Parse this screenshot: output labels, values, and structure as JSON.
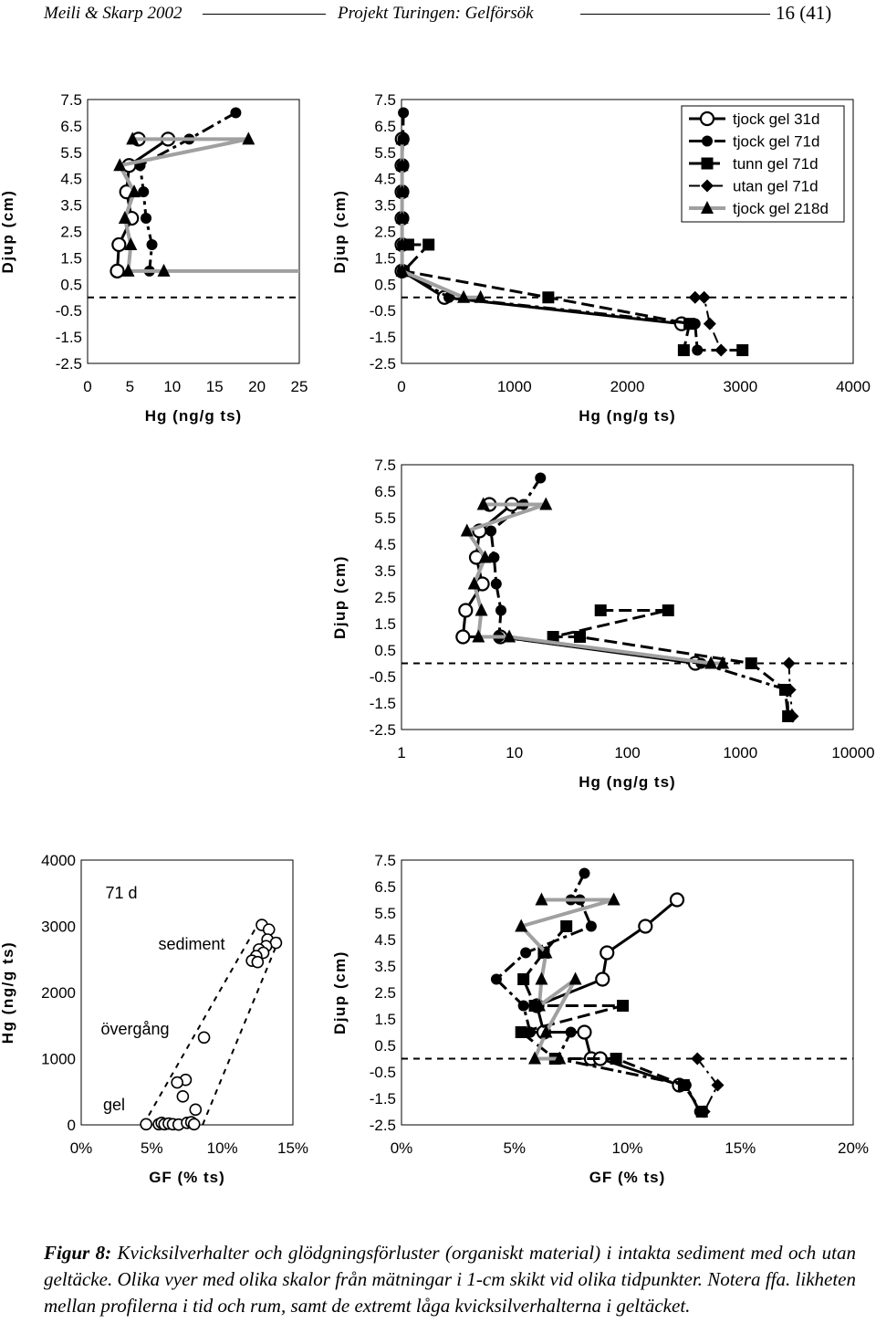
{
  "header": {
    "left": "Meili & Skarp 2002",
    "center": "Projekt Turingen: Gelförsök",
    "page": "16 (41)"
  },
  "legend": [
    "tjock gel 31d",
    "tjock gel 71d",
    "tunn gel 71d",
    "utan gel 71d",
    "tjock gel 218d"
  ],
  "caption": {
    "label": "Figur 8:",
    "text": "Kvicksilverhalter och glödgningsförluster (organiskt material) i intakta sediment med och utan geltäcke. Olika vyer med olika skalor från mätningar i 1-cm skikt vid olika tidpunkter. Notera ffa. likheten mellan profilerna i tid och rum, samt de extremt låga kvicksilverhalterna i geltäcket."
  },
  "chart_data": [
    {
      "id": "hg-depth-zoom",
      "type": "line",
      "xlabel": "Hg  (ng/g ts)",
      "ylabel": "Djup (cm)",
      "xlim": [
        0,
        25
      ],
      "ylim": [
        -2.5,
        7.5
      ],
      "xticks": [
        "0",
        "5",
        "10",
        "15",
        "20",
        "25"
      ],
      "yticks": [
        "7.5",
        "6.5",
        "5.5",
        "4.5",
        "3.5",
        "2.5",
        "1.5",
        "0.5",
        "-0.5",
        "-1.5",
        "-2.5"
      ],
      "series": [
        {
          "name": "tjock gel 31d",
          "points": [
            [
              6.0,
              6
            ],
            [
              9.5,
              6
            ],
            [
              4.9,
              5
            ],
            [
              4.6,
              4
            ],
            [
              5.2,
              3
            ],
            [
              3.7,
              2
            ],
            [
              3.5,
              1
            ]
          ]
        },
        {
          "name": "tjock gel 71d",
          "points": [
            [
              17.5,
              7
            ],
            [
              12,
              6
            ],
            [
              6.2,
              5
            ],
            [
              6.6,
              4
            ],
            [
              6.9,
              3
            ],
            [
              7.6,
              2
            ],
            [
              7.3,
              1
            ]
          ]
        },
        {
          "name": "tjock gel 218d",
          "points": [
            [
              5.3,
              6
            ],
            [
              19,
              6
            ],
            [
              3.8,
              5
            ],
            [
              5.5,
              4
            ],
            [
              4.4,
              3
            ],
            [
              5.1,
              2
            ],
            [
              4.8,
              1
            ],
            [
              9.0,
              1
            ],
            [
              25,
              1
            ]
          ]
        }
      ]
    },
    {
      "id": "hg-depth-linear",
      "type": "line",
      "xlabel": "Hg  (ng/g ts)",
      "ylabel": "Djup (cm)",
      "xlim": [
        0,
        4000
      ],
      "ylim": [
        -2.5,
        7.5
      ],
      "xticks": [
        "0",
        "1000",
        "2000",
        "3000",
        "4000"
      ],
      "yticks": [
        "7.5",
        "6.5",
        "5.5",
        "4.5",
        "3.5",
        "2.5",
        "1.5",
        "0.5",
        "-0.5",
        "-1.5",
        "-2.5"
      ],
      "series": [
        {
          "name": "tjock gel 31d",
          "points": [
            [
              6,
              6
            ],
            [
              4,
              5
            ],
            [
              4,
              4
            ],
            [
              4,
              3
            ],
            [
              4,
              2
            ],
            [
              4,
              1
            ],
            [
              380,
              0
            ],
            [
              2480,
              -1
            ]
          ]
        },
        {
          "name": "tjock gel 71d",
          "points": [
            [
              17,
              7
            ],
            [
              12,
              6
            ],
            [
              6,
              5
            ],
            [
              6,
              4
            ],
            [
              6,
              3
            ],
            [
              7,
              2
            ],
            [
              7,
              1
            ],
            [
              420,
              0
            ],
            [
              2600,
              -1
            ],
            [
              2620,
              -2
            ]
          ]
        },
        {
          "name": "tunn gel 71d",
          "points": [
            [
              60,
              2
            ],
            [
              240,
              2
            ],
            [
              20,
              1
            ],
            [
              1300,
              0
            ],
            [
              2550,
              -1
            ],
            [
              2500,
              -2
            ],
            [
              3020,
              -2
            ]
          ]
        },
        {
          "name": "utan gel 71d",
          "points": [
            [
              2600,
              0
            ],
            [
              2680,
              0
            ],
            [
              2730,
              -1
            ],
            [
              2830,
              -2
            ]
          ]
        },
        {
          "name": "tjock gel 218d",
          "points": [
            [
              5,
              6
            ],
            [
              5,
              5
            ],
            [
              5,
              4
            ],
            [
              5,
              3
            ],
            [
              5,
              2
            ],
            [
              5,
              1
            ],
            [
              550,
              0
            ],
            [
              700,
              0
            ]
          ]
        }
      ]
    },
    {
      "id": "hg-depth-log",
      "type": "line",
      "xlabel": "Hg  (ng/g ts)",
      "ylabel": "Djup (cm)",
      "xscale": "log",
      "xlim": [
        1,
        10000
      ],
      "ylim": [
        -2.5,
        7.5
      ],
      "xticks": [
        "1",
        "10",
        "100",
        "1000",
        "10000"
      ],
      "yticks": [
        "7.5",
        "6.5",
        "5.5",
        "4.5",
        "3.5",
        "2.5",
        "1.5",
        "0.5",
        "-0.5",
        "-1.5",
        "-2.5"
      ],
      "series": [
        {
          "name": "tjock gel 31d",
          "points": [
            [
              6,
              6
            ],
            [
              9.5,
              6
            ],
            [
              4.9,
              5
            ],
            [
              4.6,
              4
            ],
            [
              5.2,
              3
            ],
            [
              3.7,
              2
            ],
            [
              3.5,
              1
            ],
            [
              7.5,
              1
            ],
            [
              400,
              0
            ]
          ]
        },
        {
          "name": "tjock gel 71d",
          "points": [
            [
              17,
              7
            ],
            [
              12,
              6
            ],
            [
              6.2,
              5
            ],
            [
              6.6,
              4
            ],
            [
              6.9,
              3
            ],
            [
              7.6,
              2
            ],
            [
              7.3,
              1
            ],
            [
              450,
              0
            ],
            [
              2600,
              -1
            ],
            [
              2650,
              -2
            ]
          ]
        },
        {
          "name": "tunn gel 71d",
          "points": [
            [
              58,
              2
            ],
            [
              230,
              2
            ],
            [
              22,
              1
            ],
            [
              38,
              1
            ],
            [
              1250,
              0
            ],
            [
              2500,
              -1
            ],
            [
              2650,
              -2
            ]
          ]
        },
        {
          "name": "utan gel 71d",
          "points": [
            [
              2700,
              0
            ],
            [
              2750,
              -1
            ],
            [
              2900,
              -2
            ]
          ]
        },
        {
          "name": "tjock gel 218d",
          "points": [
            [
              5.3,
              6
            ],
            [
              19,
              6
            ],
            [
              3.8,
              5
            ],
            [
              5.5,
              4
            ],
            [
              4.4,
              3
            ],
            [
              5.1,
              2
            ],
            [
              4.8,
              1
            ],
            [
              9.0,
              1
            ],
            [
              550,
              0
            ],
            [
              700,
              0
            ]
          ]
        }
      ]
    },
    {
      "id": "hg-vs-gf",
      "type": "scatter",
      "xlabel": "GF  (% ts)",
      "ylabel": "Hg  (ng/g ts)",
      "xlim": [
        0,
        15
      ],
      "ylim": [
        0,
        4000
      ],
      "xticks": [
        "0%",
        "5%",
        "10%",
        "15%"
      ],
      "yticks": [
        "4000",
        "3000",
        "2000",
        "1000",
        "0"
      ],
      "annotations": [
        "71 d",
        "sediment",
        "övergång",
        "gel"
      ],
      "points": [
        [
          12.8,
          3020
        ],
        [
          13.3,
          2950
        ],
        [
          13.2,
          2800
        ],
        [
          13.8,
          2750
        ],
        [
          13.1,
          2700
        ],
        [
          12.6,
          2650
        ],
        [
          12.9,
          2600
        ],
        [
          12.4,
          2550
        ],
        [
          12.1,
          2480
        ],
        [
          12.5,
          2460
        ],
        [
          8.7,
          1320
        ],
        [
          7.4,
          680
        ],
        [
          6.8,
          640
        ],
        [
          7.2,
          430
        ],
        [
          8.1,
          230
        ],
        [
          4.6,
          10
        ],
        [
          5.5,
          10
        ],
        [
          5.7,
          30
        ],
        [
          5.9,
          10
        ],
        [
          6.2,
          20
        ],
        [
          6.5,
          10
        ],
        [
          6.9,
          5
        ],
        [
          7.5,
          30
        ],
        [
          7.8,
          40
        ],
        [
          8.0,
          10
        ]
      ]
    },
    {
      "id": "depth-vs-gf",
      "type": "line",
      "xlabel": "GF  (% ts)",
      "ylabel": "Djup (cm)",
      "xlim": [
        0,
        20
      ],
      "ylim": [
        -2.5,
        7.5
      ],
      "xticks": [
        "0%",
        "5%",
        "10%",
        "15%",
        "20%"
      ],
      "yticks": [
        "7.5",
        "6.5",
        "5.5",
        "4.5",
        "3.5",
        "2.5",
        "1.5",
        "0.5",
        "-0.5",
        "-1.5",
        "-2.5"
      ],
      "series": [
        {
          "name": "tjock gel 31d",
          "points": [
            [
              12.2,
              6
            ],
            [
              10.8,
              5
            ],
            [
              9.1,
              4
            ],
            [
              8.9,
              3
            ],
            [
              6.0,
              2
            ],
            [
              6.3,
              1
            ],
            [
              8.1,
              1
            ],
            [
              8.4,
              0
            ],
            [
              8.8,
              0
            ],
            [
              12.3,
              -1
            ]
          ]
        },
        {
          "name": "tjock gel 71d",
          "points": [
            [
              8.1,
              7
            ],
            [
              7.5,
              6
            ],
            [
              7.9,
              6
            ],
            [
              8.4,
              5
            ],
            [
              5.5,
              4
            ],
            [
              4.2,
              3
            ],
            [
              5.4,
              2
            ],
            [
              5.7,
              1
            ],
            [
              7.5,
              1
            ],
            [
              6.9,
              0
            ],
            [
              12.6,
              -1
            ],
            [
              13.2,
              -2
            ]
          ]
        },
        {
          "name": "tunn gel 71d",
          "points": [
            [
              7.3,
              5
            ],
            [
              6.3,
              4
            ],
            [
              5.4,
              3
            ],
            [
              5.9,
              2
            ],
            [
              9.8,
              2
            ],
            [
              5.3,
              1
            ],
            [
              6.8,
              0
            ],
            [
              9.5,
              0
            ],
            [
              12.5,
              -1
            ],
            [
              13.3,
              -2
            ]
          ]
        },
        {
          "name": "utan gel 71d",
          "points": [
            [
              13.1,
              0
            ],
            [
              14.0,
              -1
            ],
            [
              13.4,
              -2
            ]
          ]
        },
        {
          "name": "tjock gel 218d",
          "points": [
            [
              6.2,
              6
            ],
            [
              9.4,
              6
            ],
            [
              5.3,
              5
            ],
            [
              6.4,
              4
            ],
            [
              6.2,
              3
            ],
            [
              6.1,
              2
            ],
            [
              7.7,
              3
            ],
            [
              6.4,
              1
            ],
            [
              5.9,
              0
            ],
            [
              7.0,
              0
            ]
          ]
        }
      ]
    }
  ]
}
